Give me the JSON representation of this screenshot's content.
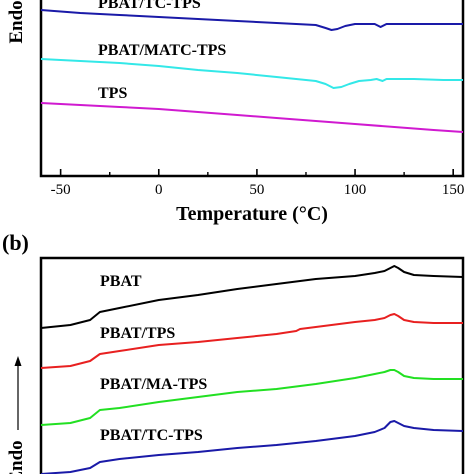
{
  "chart_data": [
    {
      "panel": "",
      "type": "line",
      "xlabel": "Temperature (°C)",
      "ylabel": "Endo",
      "xlim": [
        -60,
        155
      ],
      "xticks": [
        -50,
        0,
        50,
        100,
        150
      ],
      "xtick_labels": [
        "-50",
        "0",
        "50",
        "100",
        "150"
      ],
      "y_ticks_shown": false,
      "series": [
        {
          "name": "PBAT/TC-TPS",
          "color": "#1a1aa8",
          "x": [
            -60,
            -40,
            -20,
            0,
            20,
            40,
            60,
            80,
            85,
            88,
            91,
            95,
            100,
            110,
            113,
            116,
            130,
            155
          ],
          "y": [
            10,
            13,
            15,
            17,
            19,
            21,
            23,
            25,
            28,
            30,
            29,
            26,
            24,
            24,
            27,
            24,
            24,
            24
          ]
        },
        {
          "name": "PBAT/MATC-TPS",
          "color": "#33e8e8",
          "x": [
            -60,
            -40,
            -20,
            0,
            20,
            40,
            60,
            80,
            85,
            89,
            93,
            97,
            102,
            108,
            111,
            114,
            116,
            130,
            145,
            155
          ],
          "y": [
            59,
            61,
            63,
            66,
            70,
            73,
            77,
            81,
            84,
            88,
            87,
            84,
            81,
            80,
            79,
            81,
            79,
            79,
            80,
            80
          ]
        },
        {
          "name": "TPS",
          "color": "#d01ad0",
          "x": [
            -60,
            -40,
            -20,
            0,
            20,
            40,
            60,
            80,
            100,
            120,
            140,
            155
          ],
          "y": [
            103,
            105,
            107,
            109,
            112,
            115,
            118,
            121,
            124,
            127,
            130,
            132
          ]
        }
      ]
    },
    {
      "panel": "(b)",
      "type": "line",
      "xlabel": "",
      "ylabel": "Endo",
      "series": [
        {
          "name": "PBAT",
          "color": "#000000",
          "x": [
            -60,
            -45,
            -35,
            -30,
            -20,
            0,
            20,
            40,
            60,
            80,
            100,
            110,
            115,
            118,
            120,
            122,
            125,
            130,
            140,
            155
          ],
          "y": [
            328,
            325,
            320,
            312,
            308,
            300,
            295,
            289,
            284,
            279,
            276,
            273,
            271,
            268,
            266,
            268,
            272,
            275,
            276,
            277
          ]
        },
        {
          "name": "PBAT/TPS",
          "color": "#e82020",
          "x": [
            -60,
            -45,
            -35,
            -30,
            -20,
            0,
            20,
            40,
            60,
            70,
            72,
            80,
            100,
            110,
            115,
            118,
            120,
            122,
            125,
            130,
            140,
            155
          ],
          "y": [
            368,
            366,
            361,
            354,
            351,
            345,
            342,
            338,
            334,
            331,
            329,
            327,
            322,
            320,
            318,
            315,
            314,
            316,
            320,
            322,
            323,
            323
          ]
        },
        {
          "name": "PBAT/MA-TPS",
          "color": "#22e022",
          "x": [
            -60,
            -45,
            -35,
            -30,
            -20,
            0,
            20,
            40,
            60,
            80,
            100,
            110,
            115,
            118,
            120,
            122,
            125,
            130,
            140,
            155
          ],
          "y": [
            425,
            423,
            418,
            410,
            408,
            402,
            397,
            392,
            389,
            384,
            378,
            374,
            372,
            370,
            370,
            372,
            376,
            378,
            379,
            379
          ]
        },
        {
          "name": "PBAT/TC-TPS",
          "color": "#1a1aa8",
          "x": [
            -60,
            -45,
            -35,
            -30,
            -20,
            0,
            20,
            40,
            60,
            80,
            100,
            110,
            115,
            118,
            120,
            122,
            125,
            130,
            140,
            155
          ],
          "y": [
            474,
            472,
            468,
            462,
            459,
            455,
            452,
            448,
            445,
            441,
            436,
            432,
            428,
            422,
            421,
            423,
            426,
            428,
            430,
            431
          ]
        }
      ]
    }
  ]
}
